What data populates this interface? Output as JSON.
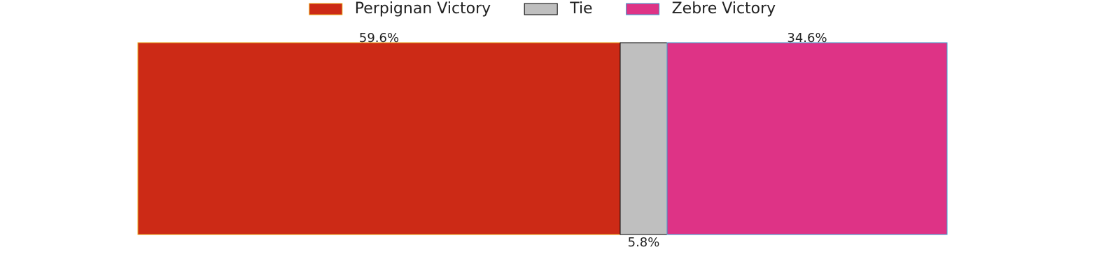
{
  "chart_data": {
    "type": "stacked_bar_horizontal",
    "series": [
      {
        "name": "Perpignan Victory",
        "color": "#cc2a16",
        "edgecolor": "#e8a317",
        "values": [
          59.6
        ],
        "value_labels": [
          "59.6%"
        ]
      },
      {
        "name": "Tie",
        "color": "#bfbfbf",
        "edgecolor": "#000000",
        "values": [
          5.8
        ],
        "value_labels": [
          "5.8%"
        ]
      },
      {
        "name": "Zebre Victory",
        "color": "#de3386",
        "edgecolor": "#3aa0d0",
        "values": [
          34.6
        ],
        "value_labels": [
          "34.6%"
        ]
      }
    ],
    "xlim": [
      0,
      100
    ]
  }
}
